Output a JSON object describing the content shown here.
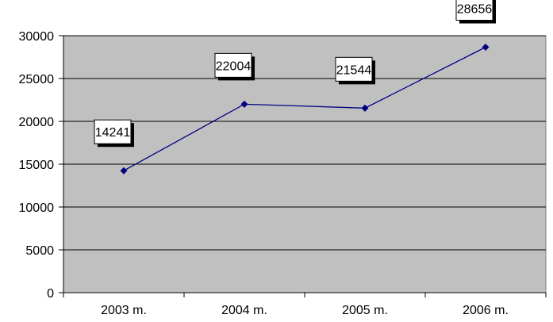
{
  "chart_data": {
    "type": "line",
    "categories": [
      "2003 m.",
      "2004 m.",
      "2005 m.",
      "2006 m."
    ],
    "series": [
      {
        "values": [
          14241,
          22004,
          21544,
          28656
        ]
      }
    ],
    "data_labels": [
      "14241",
      "22004",
      "21544",
      "28656"
    ],
    "y_ticks": [
      "0",
      "5000",
      "10000",
      "15000",
      "20000",
      "25000",
      "30000"
    ],
    "ylim": [
      0,
      30000
    ],
    "grid": true,
    "colors": {
      "plot_background": "#c0c0c0",
      "line": "#000080",
      "gridline": "#000000"
    }
  }
}
